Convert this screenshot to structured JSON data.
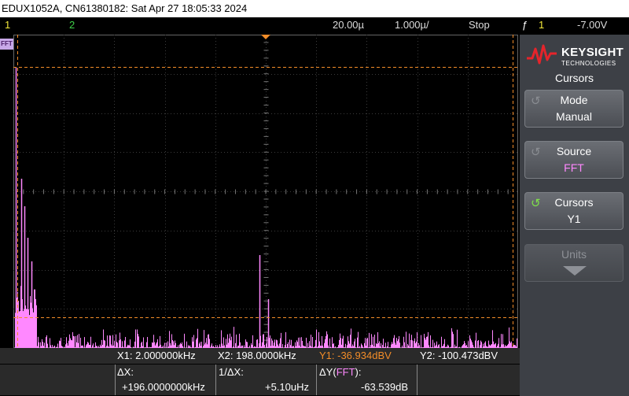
{
  "title": "EDUX1052A, CN61380182: Sat Apr 27 18:05:33 2024",
  "status": {
    "ch1": "1",
    "ch2": "2",
    "timebase": "20.00µ",
    "samplerate": "1.000µ/",
    "run_state": "Stop",
    "trigger_icon": "ƒ",
    "trigger_source": "1",
    "trigger_level": "-7.00V"
  },
  "fft_tag": "FFT",
  "brand": {
    "name": "KEYSIGHT",
    "sub": "TECHNOLOGIES"
  },
  "menu": {
    "title": "Cursors",
    "softkeys": [
      {
        "label": "Mode",
        "value": "Manual"
      },
      {
        "label": "Source",
        "value": "FFT"
      },
      {
        "label": "Cursors",
        "value": "Y1"
      },
      {
        "label": "Units",
        "value": ""
      }
    ]
  },
  "readout": {
    "x1": "X1:  2.000000kHz",
    "x2": "X2:  198.0000kHz",
    "y1": "Y1: -36.934dBV",
    "y2": "Y2: -100.473dBV",
    "dx_label": "ΔX:",
    "dx_value": "+196.0000000kHz",
    "inv_dx_label": "1/ΔX:",
    "inv_dx_value": "+5.10uHz",
    "dy_label": "ΔY(FFT):",
    "dy_value": "-63.539dB"
  },
  "colors": {
    "fft": "#ff88ff",
    "cursor": "#f28c28",
    "ch1": "#f3e83a",
    "ch2": "#3fd14a"
  }
}
